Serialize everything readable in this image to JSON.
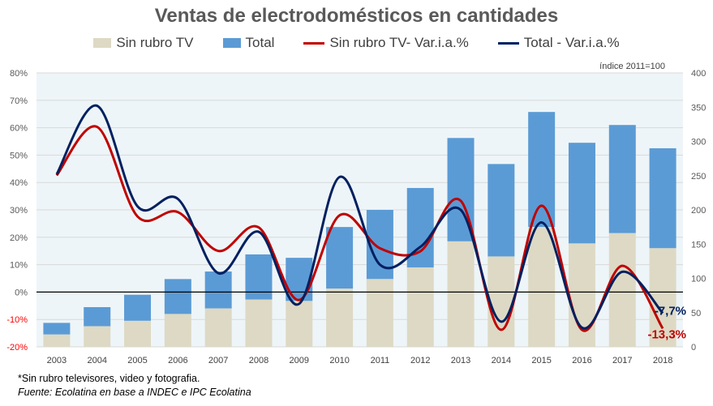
{
  "title": "Ventas de electrodomésticos en cantidades",
  "index_note": "índice 2011=100",
  "footnote": "*Sin rubro televisores, video y fotografia.",
  "source": "Fuente: Ecolatina en base a INDEC e IPC Ecolatina",
  "colors": {
    "sin_rubro": "#DDD9C4",
    "total": "#5B9BD5",
    "sin_rubro_var": "#C00000",
    "total_var": "#002060",
    "plot_bg": "#EEF5F8"
  },
  "chart_data": {
    "type": "bar+line",
    "title": "Ventas de electrodomésticos en cantidades",
    "categories": [
      "2003",
      "2004",
      "2005",
      "2006",
      "2007",
      "2008",
      "2009",
      "2010",
      "2011",
      "2012",
      "2013",
      "2014",
      "2015",
      "2016",
      "2017",
      "2018"
    ],
    "bar_series": [
      {
        "name": "Sin rubro TV",
        "axis": "right",
        "values": [
          18,
          30,
          38,
          48,
          56,
          69,
          67,
          85,
          99,
          116,
          154,
          132,
          175,
          151,
          166,
          144
        ]
      },
      {
        "name": "Total",
        "axis": "right",
        "values": [
          35,
          58,
          76,
          99,
          110,
          135,
          130,
          175,
          200,
          232,
          305,
          267,
          343,
          298,
          324,
          290
        ]
      }
    ],
    "line_series": [
      {
        "name": "Sin rubro TV- Var.i.a.%",
        "axis": "left",
        "values": [
          42.6,
          60.3,
          27.6,
          29.2,
          15,
          23.6,
          -2.9,
          28,
          16,
          14.9,
          33.3,
          -13.8,
          31.5,
          -13.8,
          9.6,
          -13.3
        ],
        "end_label": "-13,3%"
      },
      {
        "name": "Total - Var.i.a.%",
        "axis": "left",
        "values": [
          43,
          68,
          31.3,
          34,
          6.9,
          22,
          -4.3,
          42,
          10,
          16.5,
          30,
          -10.8,
          25.4,
          -13,
          7.4,
          -7.7
        ],
        "end_label": "-7,7%"
      }
    ],
    "left_axis": {
      "range": [
        -20,
        80
      ],
      "ticks": [
        "80%",
        "70%",
        "60%",
        "50%",
        "40%",
        "30%",
        "20%",
        "10%",
        "0%",
        "-10%",
        "-20%"
      ]
    },
    "right_axis": {
      "range": [
        0,
        400
      ],
      "ticks": [
        "400",
        "350",
        "300",
        "250",
        "200",
        "150",
        "100",
        "50",
        "0"
      ]
    },
    "legend": "top",
    "grid": true
  }
}
